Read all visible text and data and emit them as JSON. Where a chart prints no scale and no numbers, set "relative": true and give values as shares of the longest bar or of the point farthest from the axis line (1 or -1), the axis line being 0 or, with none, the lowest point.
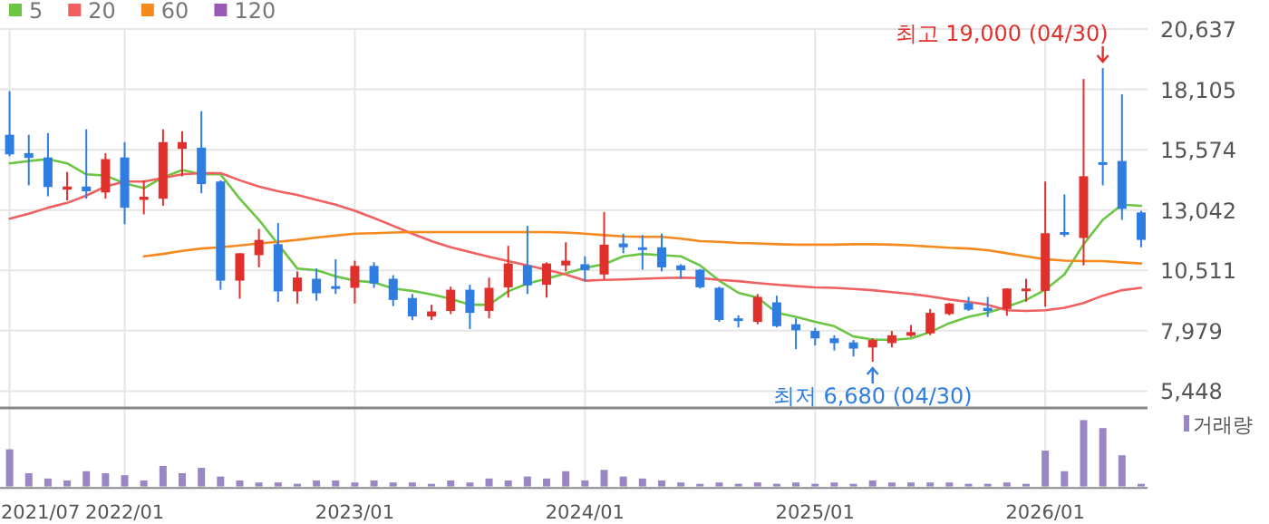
{
  "chart_data": [
    {
      "type": "candlestick",
      "x": [
        "2021-07",
        "2021-08",
        "2021-09",
        "2021-10",
        "2021-11",
        "2021-12",
        "2022-01",
        "2022-02",
        "2022-03",
        "2022-04",
        "2022-05",
        "2022-06",
        "2022-07",
        "2022-08",
        "2022-09",
        "2022-10",
        "2022-11",
        "2022-12",
        "2023-01",
        "2023-02",
        "2023-03",
        "2023-04",
        "2023-05",
        "2023-06",
        "2023-07",
        "2023-08",
        "2023-09",
        "2023-10",
        "2023-11",
        "2023-12",
        "2024-01",
        "2024-02",
        "2024-03",
        "2024-04",
        "2024-05",
        "2024-06",
        "2024-07",
        "2024-08",
        "2024-09",
        "2024-10",
        "2024-11",
        "2024-12",
        "2025-01",
        "2025-02",
        "2025-03",
        "2025-04",
        "2025-05",
        "2025-06",
        "2025-07",
        "2025-08",
        "2025-09",
        "2025-10",
        "2025-11",
        "2025-12",
        "2026-01",
        "2026-02",
        "2026-03",
        "2026-04",
        "2026-05",
        "2026-06"
      ],
      "ohlc": [
        [
          16200,
          18030,
          15300,
          15380
        ],
        [
          15430,
          16200,
          14080,
          15230
        ],
        [
          15250,
          16270,
          13620,
          14010
        ],
        [
          13900,
          14640,
          13450,
          14030
        ],
        [
          14030,
          16430,
          13520,
          13830
        ],
        [
          13780,
          15430,
          13520,
          15180
        ],
        [
          15250,
          15890,
          12450,
          13140
        ],
        [
          13470,
          14290,
          12860,
          13600
        ],
        [
          13520,
          16430,
          13220,
          15890
        ],
        [
          15610,
          16350,
          14460,
          15890
        ],
        [
          15660,
          17190,
          13750,
          14130
        ],
        [
          14240,
          14290,
          9700,
          10080
        ],
        [
          10080,
          11230,
          9320,
          11230
        ],
        [
          11150,
          12250,
          10640,
          11790
        ],
        [
          11610,
          12500,
          9190,
          9630
        ],
        [
          9630,
          10470,
          9120,
          10210
        ],
        [
          10160,
          10590,
          9240,
          9550
        ],
        [
          9850,
          10980,
          9520,
          9780
        ],
        [
          9780,
          10920,
          9120,
          10700
        ],
        [
          10700,
          10850,
          9780,
          9960
        ],
        [
          10160,
          10310,
          9010,
          9270
        ],
        [
          9350,
          9520,
          8430,
          8580
        ],
        [
          8580,
          9070,
          8430,
          8790
        ],
        [
          8810,
          9830,
          8680,
          9700
        ],
        [
          9700,
          9910,
          8050,
          8730
        ],
        [
          8810,
          10210,
          8500,
          9780
        ],
        [
          9800,
          11540,
          9370,
          10800
        ],
        [
          10720,
          12380,
          9520,
          9880
        ],
        [
          9910,
          10850,
          9370,
          10800
        ],
        [
          10720,
          11690,
          10470,
          10920
        ],
        [
          10770,
          11100,
          10060,
          10520
        ],
        [
          10340,
          12960,
          10130,
          11590
        ],
        [
          11640,
          12050,
          11230,
          11480
        ],
        [
          11480,
          11990,
          10540,
          11410
        ],
        [
          11480,
          12050,
          10470,
          10640
        ],
        [
          10720,
          10770,
          10160,
          10520
        ],
        [
          10540,
          10570,
          9750,
          9800
        ],
        [
          9780,
          9830,
          8350,
          8430
        ],
        [
          8500,
          8630,
          8120,
          8450
        ],
        [
          8350,
          9520,
          8250,
          9400
        ],
        [
          9170,
          9450,
          8120,
          8170
        ],
        [
          8250,
          8500,
          7210,
          8000
        ],
        [
          7970,
          8100,
          7360,
          7660
        ],
        [
          7660,
          7790,
          7150,
          7460
        ],
        [
          7490,
          7590,
          6900,
          7230
        ],
        [
          7280,
          7660,
          6680,
          7590
        ],
        [
          7460,
          7970,
          7280,
          7790
        ],
        [
          7770,
          8220,
          7720,
          7920
        ],
        [
          7870,
          8890,
          7790,
          8730
        ],
        [
          8680,
          9140,
          8630,
          9120
        ],
        [
          9140,
          9400,
          8810,
          8860
        ],
        [
          8940,
          9400,
          8560,
          8810
        ],
        [
          8890,
          9750,
          8610,
          9750
        ],
        [
          9650,
          10160,
          9200,
          9750
        ],
        [
          9650,
          14240,
          8990,
          12070
        ],
        [
          12120,
          13700,
          11920,
          12050
        ],
        [
          11870,
          18540,
          10720,
          14460
        ],
        [
          15050,
          19000,
          14080,
          14970
        ],
        [
          15100,
          17900,
          12630,
          13090
        ],
        [
          12940,
          13010,
          11480,
          11790
        ]
      ],
      "colors": [
        "#2f7de1",
        "#2f7de1",
        "#2f7de1",
        "#e0302c",
        "#2f7de1",
        "#e0302c",
        "#2f7de1",
        "#e0302c",
        "#e0302c",
        "#e0302c",
        "#2f7de1",
        "#2f7de1",
        "#e0302c",
        "#e0302c",
        "#2f7de1",
        "#e0302c",
        "#2f7de1",
        "#2f7de1",
        "#e0302c",
        "#2f7de1",
        "#2f7de1",
        "#2f7de1",
        "#e0302c",
        "#e0302c",
        "#2f7de1",
        "#e0302c",
        "#e0302c",
        "#2f7de1",
        "#e0302c",
        "#e0302c",
        "#2f7de1",
        "#e0302c",
        "#2f7de1",
        "#2f7de1",
        "#2f7de1",
        "#2f7de1",
        "#2f7de1",
        "#2f7de1",
        "#2f7de1",
        "#e0302c",
        "#2f7de1",
        "#2f7de1",
        "#2f7de1",
        "#2f7de1",
        "#2f7de1",
        "#e0302c",
        "#e0302c",
        "#e0302c",
        "#e0302c",
        "#e0302c",
        "#2f7de1",
        "#2f7de1",
        "#e0302c",
        "#e0302c",
        "#e0302c",
        "#2f7de1",
        "#e0302c",
        "#2f7de1",
        "#2f7de1",
        "#2f7de1"
      ],
      "series": [
        {
          "name": "5",
          "type": "line",
          "color": "#6cc644",
          "values": [
            15000,
            15100,
            15180,
            15000,
            14540,
            14490,
            14160,
            13960,
            14410,
            14720,
            14540,
            14540,
            13520,
            12630,
            11610,
            10590,
            10520,
            10260,
            10080,
            10010,
            9750,
            9650,
            9500,
            9320,
            9070,
            9070,
            9630,
            9960,
            10160,
            10390,
            10620,
            10770,
            11100,
            11200,
            11150,
            11100,
            10720,
            10080,
            9570,
            9370,
            8730,
            8560,
            8350,
            8170,
            7740,
            7610,
            7590,
            7660,
            7920,
            8300,
            8560,
            8730,
            8990,
            9270,
            9700,
            10340,
            11610,
            12630,
            13270,
            13220
          ]
        },
        {
          "name": "20",
          "type": "line",
          "color": "#f06060",
          "values": [
            12680,
            12890,
            13140,
            13340,
            13650,
            14030,
            14240,
            14240,
            14390,
            14540,
            14590,
            14590,
            14290,
            14030,
            13830,
            13680,
            13470,
            13270,
            13010,
            12710,
            12380,
            12050,
            11740,
            11480,
            11280,
            11080,
            10900,
            10720,
            10540,
            10340,
            10080,
            10110,
            10130,
            10160,
            10190,
            10210,
            10190,
            10110,
            10060,
            9980,
            9910,
            9850,
            9800,
            9780,
            9730,
            9680,
            9600,
            9520,
            9420,
            9290,
            9190,
            9070,
            8840,
            8810,
            8840,
            8940,
            9140,
            9450,
            9680,
            9780
          ]
        },
        {
          "name": "60",
          "type": "line",
          "color": "#f5891e",
          "values": [
            null,
            null,
            null,
            null,
            null,
            null,
            null,
            11100,
            11200,
            11330,
            11430,
            11480,
            11560,
            11640,
            11710,
            11790,
            11890,
            11970,
            12050,
            12070,
            12100,
            12120,
            12120,
            12120,
            12120,
            12120,
            12120,
            12120,
            12120,
            12100,
            12050,
            11990,
            11940,
            11920,
            11920,
            11840,
            11740,
            11710,
            11660,
            11640,
            11610,
            11590,
            11590,
            11590,
            11610,
            11610,
            11590,
            11560,
            11510,
            11460,
            11430,
            11360,
            11230,
            11100,
            10980,
            10920,
            10900,
            10900,
            10850,
            10800
          ]
        },
        {
          "name": "120",
          "type": "line",
          "color": "#9b59b6",
          "values": [
            null,
            null,
            null,
            null,
            null,
            null,
            null,
            null,
            null,
            null,
            null,
            null,
            null,
            null,
            null,
            null,
            null,
            null,
            null,
            null,
            null,
            null,
            null,
            null,
            null,
            null,
            null,
            null,
            null,
            null,
            null,
            null,
            null,
            null,
            null,
            null,
            null,
            null,
            null,
            null,
            null,
            null,
            null,
            null,
            null,
            null,
            null,
            null,
            null,
            null,
            null,
            null,
            null,
            null,
            null,
            null,
            null,
            null,
            null,
            null
          ]
        }
      ],
      "xlim": [
        "2021-06-16",
        "2026-06-11"
      ],
      "xticks": [
        {
          "value": "2021-07",
          "label": null
        },
        {
          "value": "2022-01",
          "label": null
        },
        {
          "value": "2023-01",
          "label": null
        },
        {
          "value": "2024-01",
          "label": null
        },
        {
          "value": "2025-01",
          "label": null
        },
        {
          "value": "2026-01",
          "label": null
        }
      ],
      "ylim": [
        4740,
        20637
      ],
      "yticks": [
        {
          "value": 5448,
          "label": "5,448"
        },
        {
          "value": 7979,
          "label": "7,979"
        },
        {
          "value": 10511,
          "label": "10,511"
        },
        {
          "value": 13042,
          "label": "13,042"
        },
        {
          "value": 15574,
          "label": "15,574"
        },
        {
          "value": 18105,
          "label": "18,105"
        },
        {
          "value": 20637,
          "label": "20,637"
        }
      ],
      "grid": true,
      "legend": "top left",
      "tick_labels": "y",
      "annotations": [
        {
          "text": "최고 19,000 (04/30)",
          "x": "2026-04",
          "y": 19000
        },
        {
          "text": "최저 6,680 (04/30)",
          "x": "2025-04",
          "y": 6680
        }
      ]
    },
    {
      "type": "bar",
      "relative": true,
      "x": [
        "2021-07",
        "2021-08",
        "2021-09",
        "2021-10",
        "2021-11",
        "2021-12",
        "2022-01",
        "2022-02",
        "2022-03",
        "2022-04",
        "2022-05",
        "2022-06",
        "2022-07",
        "2022-08",
        "2022-09",
        "2022-10",
        "2022-11",
        "2022-12",
        "2023-01",
        "2023-02",
        "2023-03",
        "2023-04",
        "2023-05",
        "2023-06",
        "2023-07",
        "2023-08",
        "2023-09",
        "2023-10",
        "2023-11",
        "2023-12",
        "2024-01",
        "2024-02",
        "2024-03",
        "2024-04",
        "2024-05",
        "2024-06",
        "2024-07",
        "2024-08",
        "2024-09",
        "2024-10",
        "2024-11",
        "2024-12",
        "2025-01",
        "2025-02",
        "2025-03",
        "2025-04",
        "2025-05",
        "2025-06",
        "2025-07",
        "2025-08",
        "2025-09",
        "2025-10",
        "2025-11",
        "2025-12",
        "2026-01",
        "2026-02",
        "2026-03",
        "2026-04",
        "2026-05",
        "2026-06"
      ],
      "series": [
        {
          "name": "거래량",
          "color": "#9b86c4",
          "values": [
            0.56,
            0.2,
            0.12,
            0.09,
            0.23,
            0.2,
            0.17,
            0.09,
            0.31,
            0.2,
            0.28,
            0.15,
            0.09,
            0.06,
            0.06,
            0.04,
            0.09,
            0.09,
            0.06,
            0.09,
            0.06,
            0.06,
            0.04,
            0.09,
            0.06,
            0.12,
            0.09,
            0.15,
            0.12,
            0.23,
            0.09,
            0.25,
            0.15,
            0.12,
            0.09,
            0.06,
            0.04,
            0.06,
            0.04,
            0.06,
            0.04,
            0.06,
            0.04,
            0.06,
            0.04,
            0.09,
            0.06,
            0.06,
            0.06,
            0.06,
            0.04,
            0.04,
            0.06,
            0.04,
            0.54,
            0.23,
            1,
            0.88,
            0.47,
            0.04
          ]
        }
      ],
      "xlim": [
        "2021-06-16",
        "2026-06-11"
      ],
      "xticks": [
        {
          "value": "2021-07",
          "label": "2021/07"
        },
        {
          "value": "2022-01",
          "label": "2022/01"
        },
        {
          "value": "2023-01",
          "label": "2023/01"
        },
        {
          "value": "2024-01",
          "label": "2024/01"
        },
        {
          "value": "2025-01",
          "label": "2025/01"
        },
        {
          "value": "2026-01",
          "label": "2026/01"
        }
      ],
      "grid": "x",
      "legend": "top right",
      "tick_labels": "x"
    }
  ]
}
